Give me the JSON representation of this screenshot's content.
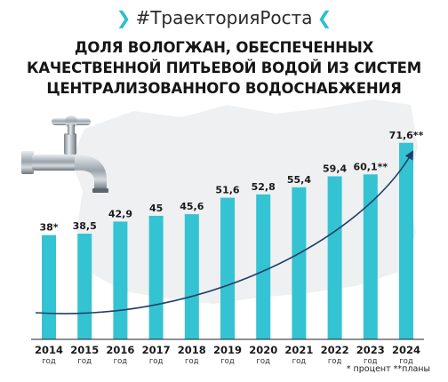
{
  "header": {
    "hashtag": "#ТраекторияРоста",
    "title_lines": [
      "ДОЛЯ ВОЛОГЖАН, ОБЕСПЕЧЕННЫХ",
      "КАЧЕСТВЕННОЙ ПИТЬЕВОЙ ВОДОЙ ИЗ СИСТЕМ",
      "ЦЕНТРАЛИЗОВАННОГО ВОДОСНАБЖЕНИЯ"
    ]
  },
  "chart_data": {
    "type": "bar",
    "categories": [
      "2014",
      "2015",
      "2016",
      "2017",
      "2018",
      "2019",
      "2020",
      "2021",
      "2022",
      "2023",
      "2024"
    ],
    "values": [
      38,
      38.5,
      42.9,
      45,
      45.6,
      51.6,
      52.8,
      55.4,
      59.4,
      60.1,
      71.6
    ],
    "data_labels": [
      "38*",
      "38,5",
      "42,9",
      "45",
      "45,6",
      "51,6",
      "52,8",
      "55,4",
      "59,4",
      "60,1**",
      "71,6**"
    ],
    "category_sublabel": "год",
    "trend_arrow": true,
    "bar_color": "#34c3d3"
  },
  "footnote": "* процент  **планы",
  "colors": {
    "accent": "#2bbfd0",
    "bar": "#34c3d3",
    "background_map": "#eef0f1"
  },
  "icons": {
    "decoration": "water-faucet-icon"
  }
}
